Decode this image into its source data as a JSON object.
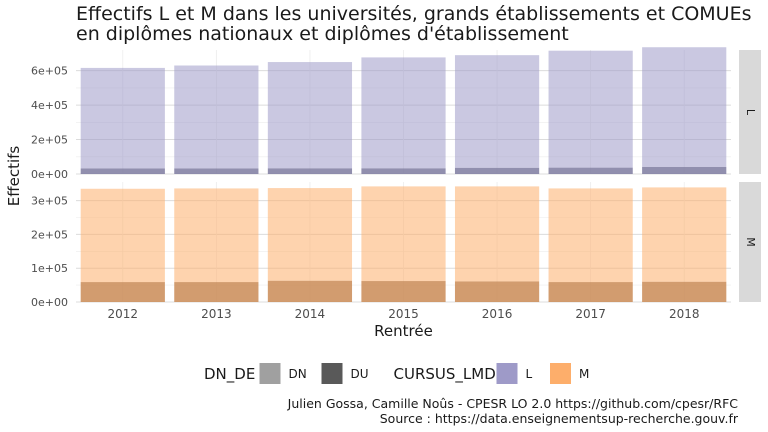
{
  "chart_data": {
    "type": "bar",
    "title_lines": [
      "Effectifs L et M dans les universités, grands établissements et COMUEs",
      "en diplômes nationaux et diplômes d'établissement"
    ],
    "xlabel": "Rentrée",
    "ylabel": "Effectifs",
    "categories": [
      "2012",
      "2013",
      "2014",
      "2015",
      "2016",
      "2017",
      "2018"
    ],
    "facets": [
      {
        "label": "L",
        "color": "#9e9ac8",
        "ylim": [
          0,
          720000
        ],
        "yticks": [
          0,
          200000,
          400000,
          600000
        ],
        "ytick_labels": [
          "0e+00",
          "2e+05",
          "4e+05",
          "6e+05"
        ],
        "series": [
          {
            "name": "DU",
            "values": [
              32000,
              32000,
              33000,
              33000,
              36000,
              37000,
              41000
            ]
          },
          {
            "name": "DN",
            "values": [
              584000,
              598000,
              617000,
              644000,
              654000,
              679000,
              695000
            ]
          }
        ]
      },
      {
        "label": "M",
        "color": "#fdae6b",
        "ylim": [
          0,
          355000
        ],
        "yticks": [
          0,
          100000,
          200000,
          300000
        ],
        "ytick_labels": [
          "0e+00",
          "1e+05",
          "2e+05",
          "3e+05"
        ],
        "series": [
          {
            "name": "DU",
            "values": [
              59000,
              59000,
              63000,
              62000,
              61000,
              59000,
              60000
            ]
          },
          {
            "name": "DN",
            "values": [
              276000,
              277000,
              274000,
              280000,
              281000,
              277000,
              279000
            ]
          }
        ]
      }
    ],
    "legend": {
      "position": "bottom",
      "groups": [
        {
          "title": "DN_DE",
          "entries": [
            {
              "label": "DN",
              "color": "#a0a0a0"
            },
            {
              "label": "DU",
              "color": "#595959"
            }
          ]
        },
        {
          "title": "CURSUS_LMD",
          "entries": [
            {
              "label": "L",
              "color": "#9e9ac8"
            },
            {
              "label": "M",
              "color": "#fdae6b"
            }
          ]
        }
      ]
    },
    "grid": true
  },
  "captions": [
    "Julien Gossa, Camille Noûs - CPESR LO 2.0 https://github.com/cpesr/RFC",
    "Source : https://data.enseignementsup-recherche.gouv.fr"
  ]
}
